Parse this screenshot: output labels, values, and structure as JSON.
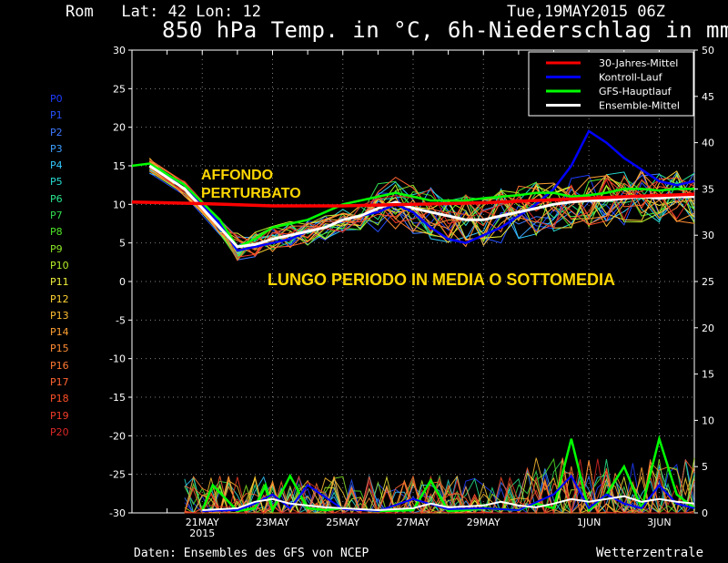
{
  "header": {
    "location": "Rom   Lat: 42 Lon: 12",
    "date": "Tue,19MAY2015 06Z",
    "title": "850 hPa Temp. in °C, 6h-Niederschlag in mm"
  },
  "footer": {
    "source": "Daten: Ensembles des GFS von NCEP",
    "brand": "Wetterzentrale"
  },
  "members": [
    {
      "label": "P0",
      "color": "#1e3cff"
    },
    {
      "label": "P1",
      "color": "#2850ff"
    },
    {
      "label": "P2",
      "color": "#3c78ff"
    },
    {
      "label": "P3",
      "color": "#3ca0ff"
    },
    {
      "label": "P4",
      "color": "#32c8ff"
    },
    {
      "label": "P5",
      "color": "#28dcd2"
    },
    {
      "label": "P6",
      "color": "#28e68c"
    },
    {
      "label": "P7",
      "color": "#32dc50"
    },
    {
      "label": "P8",
      "color": "#50e628"
    },
    {
      "label": "P9",
      "color": "#8ce628"
    },
    {
      "label": "P10",
      "color": "#b4f028"
    },
    {
      "label": "P11",
      "color": "#f0f03c"
    },
    {
      "label": "P12",
      "color": "#ffd232"
    },
    {
      "label": "P13",
      "color": "#ffbe32"
    },
    {
      "label": "P14",
      "color": "#ffa032"
    },
    {
      "label": "P15",
      "color": "#ff8c32"
    },
    {
      "label": "P16",
      "color": "#ff7832"
    },
    {
      "label": "P17",
      "color": "#ff6432"
    },
    {
      "label": "P18",
      "color": "#ff5028"
    },
    {
      "label": "P19",
      "color": "#f03c28"
    },
    {
      "label": "P20",
      "color": "#dc2828"
    }
  ],
  "annotations": {
    "short_term": [
      "AFFONDO",
      "PERTURBATO"
    ],
    "long_term": "LUNGO PERIODO IN MEDIA O SOTTOMEDIA"
  },
  "chart_data": {
    "type": "line",
    "y_left": {
      "min": -30,
      "max": 30,
      "step": 5,
      "unit": "°C"
    },
    "y_right": {
      "min": 0,
      "max": 50,
      "step": 5,
      "unit": "mm"
    },
    "x_ticks": [
      {
        "label": "21MAY",
        "sub": "2015",
        "day": 2
      },
      {
        "label": "23MAY",
        "sub": "",
        "day": 4
      },
      {
        "label": "25MAY",
        "sub": "",
        "day": 6
      },
      {
        "label": "27MAY",
        "sub": "",
        "day": 8
      },
      {
        "label": "29MAY",
        "sub": "",
        "day": 10
      },
      {
        "label": "1JUN",
        "sub": "",
        "day": 13
      },
      {
        "label": "3JUN",
        "sub": "",
        "day": 15
      }
    ],
    "x_range_days": [
      0,
      16
    ],
    "grid": true,
    "legend": {
      "placement": "top-right",
      "entries": [
        {
          "name": "30-Jahres-Mittel",
          "color": "#ff0000"
        },
        {
          "name": "Kontroll-Lauf",
          "color": "#0000ff"
        },
        {
          "name": "GFS-Hauptlauf",
          "color": "#00ff00"
        },
        {
          "name": "Ensemble-Mittel",
          "color": "#ffffff"
        }
      ]
    },
    "series": [
      {
        "name": "30-Jahres-Mittel",
        "color": "#ff0000",
        "x": [
          0,
          2,
          4,
          6,
          8,
          10,
          12,
          14,
          16
        ],
        "y": [
          10.3,
          10.1,
          9.8,
          9.8,
          10.0,
          10.2,
          10.6,
          11.0,
          11.3
        ]
      },
      {
        "name": "Ensemble-Mittel",
        "color": "#ffffff",
        "x": [
          0.5,
          1.5,
          2.5,
          3,
          3.5,
          4,
          4.5,
          5,
          5.5,
          6,
          6.5,
          7,
          7.5,
          8,
          8.5,
          9,
          9.5,
          10,
          10.5,
          11,
          11.5,
          12,
          12.5,
          13,
          13.5,
          14,
          14.5,
          15,
          15.5,
          16
        ],
        "y": [
          15,
          12,
          7,
          4.5,
          4.8,
          5.5,
          6,
          6.5,
          7,
          8,
          8.5,
          9.5,
          10.3,
          9.5,
          9,
          8.5,
          8,
          8,
          8.5,
          9,
          9.5,
          10,
          10.3,
          10.5,
          10.5,
          10.8,
          11,
          10.8,
          11,
          11
        ]
      },
      {
        "name": "Kontroll-Lauf",
        "color": "#0000ff",
        "x": [
          0.5,
          1.5,
          2.5,
          3,
          3.5,
          4,
          4.5,
          5,
          5.5,
          6,
          6.5,
          7,
          7.5,
          8,
          8.5,
          9,
          9.5,
          10,
          10.5,
          11,
          11.5,
          12,
          12.5,
          13,
          13.5,
          14,
          14.5,
          15,
          15.5,
          16
        ],
        "y": [
          15,
          12.5,
          7.5,
          4,
          4.5,
          5,
          5.5,
          6.5,
          7,
          8,
          8.5,
          9,
          10,
          9,
          7,
          5.5,
          5,
          6,
          7,
          8.5,
          10,
          12,
          15,
          19.5,
          18,
          16,
          14.5,
          13,
          12.5,
          13
        ]
      },
      {
        "name": "GFS-Hauptlauf",
        "color": "#00ff00",
        "x": [
          0,
          0.5,
          1.5,
          2.5,
          3,
          3.5,
          4,
          4.5,
          5,
          5.5,
          6,
          6.5,
          7,
          7.5,
          8,
          8.5,
          9,
          9.5,
          10,
          10.5,
          11,
          11.5,
          12,
          12.5,
          13,
          13.5,
          14,
          14.5,
          15,
          15.5,
          16
        ],
        "y": [
          15,
          15.3,
          12.5,
          8,
          4.5,
          5.5,
          7,
          7.5,
          8,
          9,
          10,
          10.5,
          11,
          11.5,
          11,
          10.5,
          10.5,
          10.5,
          10.8,
          11,
          11.2,
          11.5,
          11.5,
          11,
          11.2,
          11.5,
          12,
          12,
          11.8,
          12,
          12
        ]
      }
    ],
    "precip_series": [
      {
        "name": "GFS-Hauptlauf",
        "color": "#00ff00",
        "x": [
          2,
          2.3,
          3,
          3.5,
          3.8,
          4,
          4.5,
          5,
          5.5,
          6,
          7,
          8,
          8.5,
          9,
          9.5,
          10,
          11,
          11.5,
          12,
          12.5,
          13,
          13.5,
          14,
          14.5,
          15,
          15.5,
          16
        ],
        "y": [
          0.3,
          3,
          0.2,
          0.5,
          3,
          0.3,
          4,
          0.5,
          0.3,
          0.5,
          0.2,
          0.3,
          3.5,
          0.2,
          0.3,
          0.5,
          0.3,
          1,
          0.5,
          8,
          0.3,
          2,
          5,
          0.5,
          8,
          2,
          0.5
        ]
      },
      {
        "name": "Kontroll-Lauf",
        "color": "#0000ff",
        "x": [
          2,
          3,
          3.5,
          4,
          4.5,
          5,
          6,
          7,
          8,
          9,
          10,
          11,
          12,
          12.5,
          13,
          13.5,
          14,
          14.5,
          15,
          15.5,
          16
        ],
        "y": [
          0.2,
          0.3,
          1,
          2,
          0.5,
          3,
          0.4,
          0.2,
          1.5,
          0.4,
          0.5,
          0.3,
          2,
          4,
          0.5,
          2,
          1,
          0.5,
          3,
          1,
          0.5
        ]
      },
      {
        "name": "Ensemble-Mittel",
        "color": "#ffffff",
        "x": [
          2,
          3,
          3.5,
          4,
          4.5,
          5,
          5.5,
          6,
          7,
          8,
          8.5,
          9,
          10,
          10.5,
          11,
          11.5,
          12,
          12.5,
          13,
          13.5,
          14,
          14.5,
          15,
          15.5,
          16
        ],
        "y": [
          0.3,
          0.5,
          1.2,
          1.5,
          1.0,
          0.8,
          0.6,
          0.5,
          0.3,
          0.5,
          1.0,
          0.6,
          0.8,
          1.2,
          0.8,
          0.6,
          1.0,
          1.5,
          1.2,
          1.5,
          1.8,
          1.2,
          1.5,
          1.2,
          1.0
        ]
      }
    ]
  }
}
